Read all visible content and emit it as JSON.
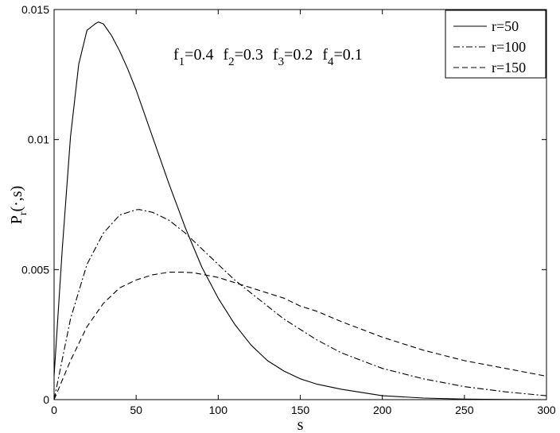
{
  "chart_data": {
    "type": "line",
    "xlabel": "s",
    "ylabel": "P",
    "ylabel_sub": "r",
    "ylabel_args": "(·,s)",
    "xlim": [
      0,
      300
    ],
    "ylim": [
      0,
      0.015
    ],
    "x_ticks": [
      0,
      50,
      100,
      150,
      200,
      250,
      300
    ],
    "x_tick_labels": [
      "0",
      "50",
      "100",
      "150",
      "200",
      "250",
      "300"
    ],
    "y_ticks": [
      0,
      0.005,
      0.01,
      0.015
    ],
    "y_tick_labels": [
      "0",
      "0.005",
      "0.01",
      "0.015"
    ],
    "grid": false,
    "legend_position": "top-right",
    "annotation": {
      "items": [
        {
          "base": "f",
          "sub": "1",
          "value": "=0.4"
        },
        {
          "base": "f",
          "sub": "2",
          "value": "=0.3"
        },
        {
          "base": "f",
          "sub": "3",
          "value": "=0.2"
        },
        {
          "base": "f",
          "sub": "4",
          "value": "=0.1"
        }
      ]
    },
    "series": [
      {
        "name": "r=50",
        "style": "solid",
        "x": [
          0,
          5,
          10,
          15,
          20,
          25,
          27,
          30,
          35,
          40,
          45,
          50,
          60,
          70,
          80,
          90,
          100,
          110,
          120,
          130,
          140,
          150,
          160,
          175,
          200,
          225,
          250,
          275,
          300
        ],
        "y": [
          0.0009,
          0.0058,
          0.0101,
          0.0129,
          0.0142,
          0.01445,
          0.01452,
          0.01445,
          0.014,
          0.0134,
          0.0127,
          0.0119,
          0.0101,
          0.0083,
          0.0066,
          0.0051,
          0.0039,
          0.0029,
          0.0021,
          0.0015,
          0.0011,
          0.0008,
          0.0006,
          0.0004,
          0.00015,
          6e-05,
          2e-05,
          5e-06,
          0.0
        ]
      },
      {
        "name": "r=100",
        "style": "dashdot",
        "x": [
          0,
          10,
          20,
          30,
          40,
          50,
          52,
          60,
          70,
          80,
          90,
          100,
          110,
          120,
          130,
          140,
          150,
          160,
          175,
          200,
          225,
          250,
          275,
          300
        ],
        "y": [
          0.0,
          0.0031,
          0.0052,
          0.0064,
          0.0071,
          0.0073,
          0.00731,
          0.0072,
          0.0069,
          0.0064,
          0.0058,
          0.0052,
          0.0046,
          0.0041,
          0.0036,
          0.0031,
          0.0027,
          0.0023,
          0.0018,
          0.0012,
          0.0008,
          0.0005,
          0.0003,
          0.00015
        ]
      },
      {
        "name": "r=150",
        "style": "dashed",
        "x": [
          0,
          10,
          20,
          30,
          40,
          50,
          60,
          70,
          78,
          85,
          100,
          110,
          120,
          130,
          140,
          150,
          160,
          175,
          200,
          225,
          250,
          275,
          300
        ],
        "y": [
          0.0,
          0.0015,
          0.0028,
          0.0037,
          0.0043,
          0.0046,
          0.0048,
          0.0049,
          0.0049,
          0.00488,
          0.0047,
          0.0045,
          0.0043,
          0.0041,
          0.0039,
          0.0036,
          0.0034,
          0.003,
          0.0024,
          0.0019,
          0.0015,
          0.0012,
          0.0009
        ]
      }
    ]
  }
}
